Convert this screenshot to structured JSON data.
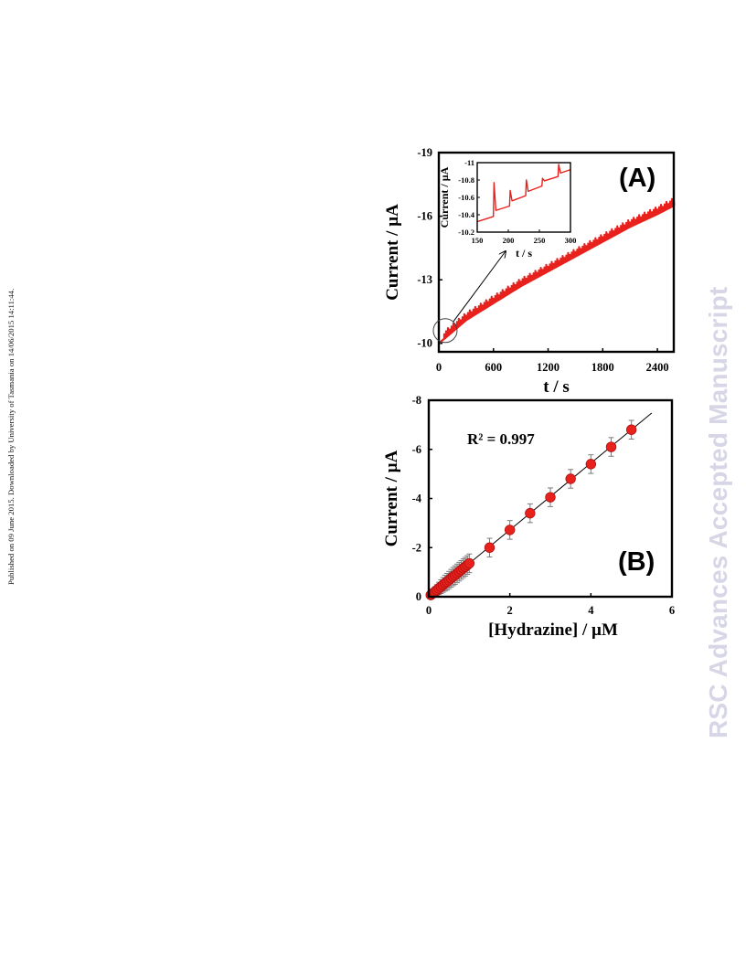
{
  "side_note": "Published on 09 June 2015. Downloaded by University of Tasmania on 14/06/2015 14:11:44.",
  "watermark": "RSC Advances Accepted Manuscript",
  "colors": {
    "data": "#e8211d",
    "marker_edge": "#b01010",
    "fit_line": "#000000",
    "error_bar": "#7a7a7a",
    "watermark": "#d6d6e6"
  },
  "chart_data": [
    {
      "type": "line",
      "panel_label": "(A)",
      "xlabel": "t / s",
      "ylabel": "Current / µA",
      "xlim": [
        0,
        2580
      ],
      "ylim": [
        -9.6,
        -19
      ],
      "y_inverted": true,
      "xticks": [
        0,
        600,
        1200,
        1800,
        2400
      ],
      "xtick_labels": [
        "0",
        "600",
        "1200",
        "1800",
        "2400"
      ],
      "yticks": [
        -10,
        -13,
        -16,
        -19
      ],
      "ytick_labels": [
        "-10",
        "-13",
        "-16",
        "-19"
      ],
      "series": [
        {
          "x": [
            0,
            300,
            600,
            900,
            1200,
            1500,
            1800,
            2100,
            2400,
            2580
          ],
          "y": [
            -10.0,
            -11.1,
            -11.9,
            -12.7,
            -13.4,
            -14.1,
            -14.8,
            -15.5,
            -16.1,
            -16.5
          ]
        }
      ],
      "spikes_every_s": 20,
      "spike_height": 0.35,
      "annotation": "circle near t = 70 s, current -10.6 µA, with arrow pointing to inset",
      "inset": {
        "type": "line",
        "xlabel": "t / s",
        "ylabel": "Current / µA",
        "xlim": [
          150,
          300
        ],
        "ylim": [
          -10.2,
          -11
        ],
        "y_inverted": true,
        "xticks": [
          150,
          200,
          250,
          300
        ],
        "xtick_labels": [
          "150",
          "200",
          "250",
          "300"
        ],
        "yticks": [
          -10.2,
          -10.4,
          -10.6,
          -10.8,
          -11
        ],
        "ytick_labels": [
          "-10.2",
          "-10.4",
          "-10.6",
          "-10.8",
          "-11"
        ],
        "series": [
          {
            "x": [
              150,
              176,
              180,
              202,
              206,
              228,
              232,
              254,
              258,
              280,
              284,
              300
            ],
            "y": [
              -10.32,
              -10.38,
              -10.45,
              -10.5,
              -10.56,
              -10.62,
              -10.67,
              -10.73,
              -10.79,
              -10.84,
              -10.88,
              -10.92
            ]
          }
        ],
        "spikes": [
          {
            "x": 177,
            "y": -10.77
          },
          {
            "x": 203,
            "y": -10.68
          },
          {
            "x": 229,
            "y": -10.8
          },
          {
            "x": 255,
            "y": -10.82
          },
          {
            "x": 281,
            "y": -10.98
          }
        ]
      }
    },
    {
      "type": "scatter",
      "panel_label": "(B)",
      "xlabel": "[Hydrazine] / µM",
      "ylabel": "Current / µA",
      "annotation": "R² = 0.997",
      "xlim": [
        0,
        6
      ],
      "ylim": [
        0,
        -8
      ],
      "y_inverted": true,
      "xticks": [
        0,
        2,
        4,
        6
      ],
      "xtick_labels": [
        "0",
        "2",
        "4",
        "6"
      ],
      "yticks": [
        0,
        -2,
        -4,
        -6,
        -8
      ],
      "ytick_labels": [
        "0",
        "-2",
        "-4",
        "-6",
        "-8"
      ],
      "points": [
        {
          "x": 0.05,
          "y": -0.07,
          "err": 0.1
        },
        {
          "x": 0.1,
          "y": -0.14,
          "err": 0.15
        },
        {
          "x": 0.15,
          "y": -0.2,
          "err": 0.2
        },
        {
          "x": 0.2,
          "y": -0.27,
          "err": 0.22
        },
        {
          "x": 0.25,
          "y": -0.34,
          "err": 0.25
        },
        {
          "x": 0.3,
          "y": -0.41,
          "err": 0.28
        },
        {
          "x": 0.35,
          "y": -0.48,
          "err": 0.3
        },
        {
          "x": 0.4,
          "y": -0.55,
          "err": 0.32
        },
        {
          "x": 0.45,
          "y": -0.61,
          "err": 0.34
        },
        {
          "x": 0.5,
          "y": -0.68,
          "err": 0.35
        },
        {
          "x": 0.55,
          "y": -0.75,
          "err": 0.36
        },
        {
          "x": 0.6,
          "y": -0.82,
          "err": 0.37
        },
        {
          "x": 0.65,
          "y": -0.88,
          "err": 0.38
        },
        {
          "x": 0.7,
          "y": -0.95,
          "err": 0.38
        },
        {
          "x": 0.75,
          "y": -1.02,
          "err": 0.38
        },
        {
          "x": 0.8,
          "y": -1.09,
          "err": 0.38
        },
        {
          "x": 0.85,
          "y": -1.16,
          "err": 0.38
        },
        {
          "x": 0.9,
          "y": -1.22,
          "err": 0.38
        },
        {
          "x": 0.95,
          "y": -1.29,
          "err": 0.38
        },
        {
          "x": 1.0,
          "y": -1.36,
          "err": 0.38
        },
        {
          "x": 1.5,
          "y": -2.0,
          "err": 0.38
        },
        {
          "x": 2.0,
          "y": -2.72,
          "err": 0.38
        },
        {
          "x": 2.5,
          "y": -3.4,
          "err": 0.38
        },
        {
          "x": 3.0,
          "y": -4.05,
          "err": 0.38
        },
        {
          "x": 3.5,
          "y": -4.8,
          "err": 0.38
        },
        {
          "x": 4.0,
          "y": -5.4,
          "err": 0.38
        },
        {
          "x": 4.5,
          "y": -6.1,
          "err": 0.38
        },
        {
          "x": 5.0,
          "y": -6.8,
          "err": 0.38
        }
      ],
      "fit": {
        "slope": -1.36,
        "intercept": 0.0,
        "x_range": [
          0,
          5.5
        ]
      }
    }
  ]
}
